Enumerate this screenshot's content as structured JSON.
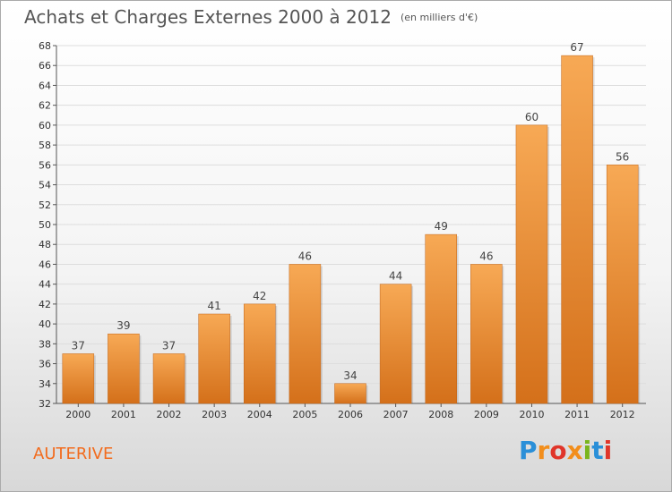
{
  "header": {
    "title": "Achats et Charges Externes 2000 à 2012",
    "unit": "(en milliers d'€)"
  },
  "footer": {
    "commune": "AUTERIVE",
    "logo": "Proxiti"
  },
  "colors": {
    "bar_light": "#f6a550",
    "bar_dark": "#d8741c",
    "grid": "#dddddd",
    "commune": "#f26b1d"
  },
  "chart_data": {
    "type": "bar",
    "title": "Achats et Charges Externes 2000 à 2012",
    "subtitle": "(en milliers d'€)",
    "categories": [
      "2000",
      "2001",
      "2002",
      "2003",
      "2004",
      "2005",
      "2006",
      "2007",
      "2008",
      "2009",
      "2010",
      "2011",
      "2012"
    ],
    "values": [
      37,
      39,
      37,
      41,
      42,
      46,
      34,
      44,
      49,
      46,
      60,
      67,
      56
    ],
    "ylim": [
      32,
      68
    ],
    "yticks": [
      32,
      34,
      36,
      38,
      40,
      42,
      44,
      46,
      48,
      50,
      52,
      54,
      56,
      58,
      60,
      62,
      64,
      66,
      68
    ],
    "xlabel": "",
    "ylabel": "",
    "grid": true,
    "legend": "none"
  }
}
